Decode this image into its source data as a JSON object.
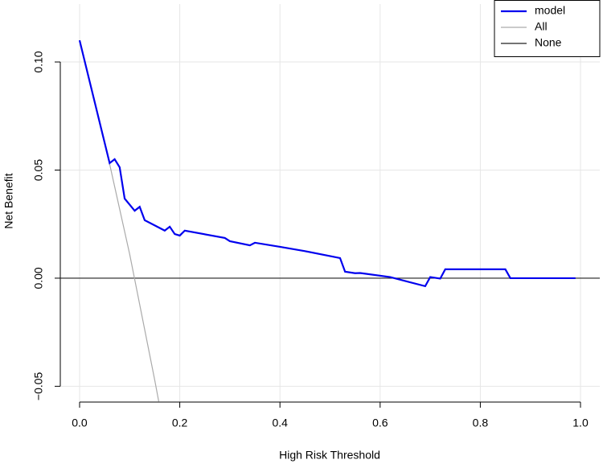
{
  "chart_data": {
    "type": "line",
    "x_label": "High Risk Threshold",
    "y_label": "Net Benefit",
    "xlim": [
      -0.0385,
      1.0385
    ],
    "ylim": [
      -0.0573,
      0.1268
    ],
    "xticks": [
      {
        "value": 0,
        "label": "0.0"
      },
      0.2,
      0.4,
      0.6,
      0.8,
      {
        "value": 1,
        "label": "1.0"
      }
    ],
    "yticks": [
      {
        "value": -0.05,
        "label": "−0.05"
      },
      {
        "value": 0,
        "label": "0.00"
      },
      0.05,
      {
        "value": 0.1,
        "label": "0.10"
      }
    ],
    "grid": true,
    "legend": "top-right",
    "series": [
      {
        "name": "model",
        "color": "#0000ee",
        "width": 2.2,
        "x": [
          0,
          0.06,
          0.07,
          0.08,
          0.09,
          0.11,
          0.12,
          0.13,
          0.17,
          0.18,
          0.19,
          0.2,
          0.21,
          0.29,
          0.3,
          0.34,
          0.35,
          0.4,
          0.45,
          0.52,
          0.53,
          0.55,
          0.56,
          0.62,
          0.69,
          0.7,
          0.72,
          0.73,
          0.85,
          0.86,
          0.99
        ],
        "values": [
          0.11,
          0.0532,
          0.055,
          0.0513,
          0.0368,
          0.0312,
          0.033,
          0.0268,
          0.022,
          0.0238,
          0.0204,
          0.0197,
          0.022,
          0.0186,
          0.0171,
          0.0152,
          0.0164,
          0.0145,
          0.0125,
          0.0093,
          0.003,
          0.0023,
          0.0024,
          0.0005,
          -0.0037,
          0.0005,
          -0.0002,
          0.0041,
          0.0041,
          0,
          0
        ]
      },
      {
        "name": "All",
        "color": "#aaaaaa",
        "width": 1.2,
        "x": [
          0,
          0.05,
          0.1,
          0.15,
          0.158
        ],
        "values": [
          0.11,
          0.0632,
          0.0111,
          -0.0471,
          -0.057
        ]
      },
      {
        "name": "None",
        "color": "#222222",
        "width": 1.2,
        "x": [
          -0.0385,
          1.0385
        ],
        "values": [
          0,
          0
        ]
      }
    ]
  }
}
